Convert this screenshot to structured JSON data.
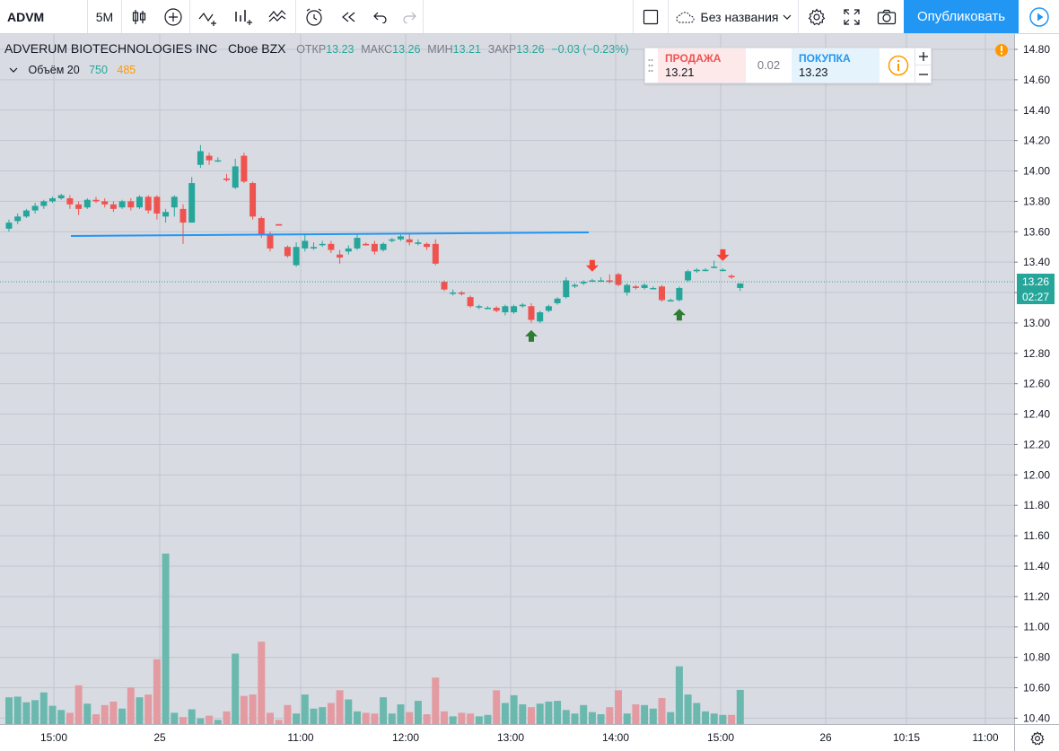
{
  "toolbar": {
    "symbol": "ADVM",
    "interval": "5M",
    "layout_name": "Без названия",
    "publish_label": "Опубликовать"
  },
  "legend": {
    "name": "ADVERUM BIOTECHNOLOGIES INC",
    "exchange": "Cboe BZX",
    "open_label": "ОТКР",
    "open": "13.23",
    "high_label": "МАКС",
    "high": "13.26",
    "low_label": "МИН",
    "low": "13.21",
    "close_label": "ЗАКР",
    "close": "13.26",
    "change": "−0.03 (−0.23%)",
    "volume_label": "Объём 20",
    "volume_ma": "750",
    "volume": "485"
  },
  "trade": {
    "sell_label": "ПРОДАЖА",
    "sell_price": "13.21",
    "spread": "0.02",
    "buy_label": "ПОКУПКА",
    "buy_price": "13.23"
  },
  "price_scale": {
    "labels": [
      "14.80",
      "14.60",
      "14.40",
      "14.20",
      "14.00",
      "13.80",
      "13.60",
      "13.40",
      "13.20",
      "13.00",
      "12.80",
      "12.60",
      "12.40",
      "12.20",
      "12.00",
      "11.80",
      "11.60",
      "11.40",
      "11.20",
      "11.00",
      "10.80",
      "10.60",
      "10.40"
    ],
    "last_price": "13.26",
    "countdown": "02:27"
  },
  "time_scale": {
    "labels": [
      "15:00",
      "25",
      "11:00",
      "12:00",
      "13:00",
      "14:00",
      "15:00",
      "26",
      "10:15",
      "11:00"
    ]
  },
  "colors": {
    "up": "#26a69a",
    "down": "#ef5350",
    "up_volume": "#6bb9ae",
    "down_volume": "#e39ba1",
    "trendline": "#2196f3",
    "accent": "#2196f3"
  },
  "chart_data": {
    "type": "candlestick",
    "symbol": "ADVM",
    "interval": "5M",
    "ylim": [
      10.36,
      14.88
    ],
    "horizontal_line_trendline": 13.58,
    "last_price": 13.26,
    "candles": [
      {
        "o": 13.62,
        "h": 13.68,
        "l": 13.6,
        "c": 13.66,
        "v": 380
      },
      {
        "o": 13.67,
        "h": 13.72,
        "l": 13.65,
        "c": 13.7,
        "v": 390
      },
      {
        "o": 13.7,
        "h": 13.75,
        "l": 13.69,
        "c": 13.74,
        "v": 310
      },
      {
        "o": 13.74,
        "h": 13.79,
        "l": 13.72,
        "c": 13.77,
        "v": 340
      },
      {
        "o": 13.77,
        "h": 13.81,
        "l": 13.75,
        "c": 13.8,
        "v": 450
      },
      {
        "o": 13.8,
        "h": 13.83,
        "l": 13.79,
        "c": 13.82,
        "v": 260
      },
      {
        "o": 13.82,
        "h": 13.85,
        "l": 13.81,
        "c": 13.84,
        "v": 200
      },
      {
        "o": 13.82,
        "h": 13.84,
        "l": 13.75,
        "c": 13.78,
        "v": 160
      },
      {
        "o": 13.78,
        "h": 13.8,
        "l": 13.71,
        "c": 13.75,
        "v": 550
      },
      {
        "o": 13.76,
        "h": 13.82,
        "l": 13.75,
        "c": 13.81,
        "v": 290
      },
      {
        "o": 13.81,
        "h": 13.83,
        "l": 13.79,
        "c": 13.8,
        "v": 140
      },
      {
        "o": 13.8,
        "h": 13.82,
        "l": 13.76,
        "c": 13.78,
        "v": 270
      },
      {
        "o": 13.78,
        "h": 13.8,
        "l": 13.73,
        "c": 13.75,
        "v": 320
      },
      {
        "o": 13.76,
        "h": 13.81,
        "l": 13.75,
        "c": 13.8,
        "v": 220
      },
      {
        "o": 13.8,
        "h": 13.82,
        "l": 13.74,
        "c": 13.76,
        "v": 520
      },
      {
        "o": 13.76,
        "h": 13.84,
        "l": 13.75,
        "c": 13.83,
        "v": 380
      },
      {
        "o": 13.83,
        "h": 13.84,
        "l": 13.72,
        "c": 13.74,
        "v": 420
      },
      {
        "o": 13.83,
        "h": 13.84,
        "l": 13.68,
        "c": 13.72,
        "v": 920
      },
      {
        "o": 13.7,
        "h": 13.75,
        "l": 13.66,
        "c": 13.73,
        "v": 2420
      },
      {
        "o": 13.76,
        "h": 13.84,
        "l": 13.7,
        "c": 13.83,
        "v": 160
      },
      {
        "o": 13.75,
        "h": 13.78,
        "l": 13.52,
        "c": 13.66,
        "v": 100
      },
      {
        "o": 13.66,
        "h": 13.96,
        "l": 13.66,
        "c": 13.92,
        "v": 210
      },
      {
        "o": 14.04,
        "h": 14.17,
        "l": 14.02,
        "c": 14.13,
        "v": 80
      },
      {
        "o": 14.1,
        "h": 14.12,
        "l": 14.04,
        "c": 14.07,
        "v": 120
      },
      {
        "o": 14.07,
        "h": 14.09,
        "l": 14.06,
        "c": 14.07,
        "v": 60
      },
      {
        "o": 13.95,
        "h": 13.98,
        "l": 13.93,
        "c": 13.94,
        "v": 180
      },
      {
        "o": 13.89,
        "h": 14.08,
        "l": 13.88,
        "c": 14.03,
        "v": 1000
      },
      {
        "o": 14.1,
        "h": 14.12,
        "l": 13.92,
        "c": 13.93,
        "v": 400
      },
      {
        "o": 13.92,
        "h": 13.93,
        "l": 13.68,
        "c": 13.7,
        "v": 420
      },
      {
        "o": 13.69,
        "h": 13.7,
        "l": 13.56,
        "c": 13.58,
        "v": 1170
      },
      {
        "o": 13.58,
        "h": 13.6,
        "l": 13.47,
        "c": 13.49,
        "v": 160
      },
      {
        "o": 13.65,
        "h": 13.65,
        "l": 13.64,
        "c": 13.64,
        "v": 60
      },
      {
        "o": 13.5,
        "h": 13.51,
        "l": 13.43,
        "c": 13.44,
        "v": 270
      },
      {
        "o": 13.38,
        "h": 13.53,
        "l": 13.37,
        "c": 13.5,
        "v": 150
      },
      {
        "o": 13.49,
        "h": 13.59,
        "l": 13.47,
        "c": 13.54,
        "v": 420
      },
      {
        "o": 13.49,
        "h": 13.53,
        "l": 13.48,
        "c": 13.5,
        "v": 220
      },
      {
        "o": 13.52,
        "h": 13.54,
        "l": 13.5,
        "c": 13.52,
        "v": 240
      },
      {
        "o": 13.52,
        "h": 13.54,
        "l": 13.46,
        "c": 13.48,
        "v": 300
      },
      {
        "o": 13.45,
        "h": 13.48,
        "l": 13.39,
        "c": 13.43,
        "v": 480
      },
      {
        "o": 13.47,
        "h": 13.51,
        "l": 13.45,
        "c": 13.49,
        "v": 350
      },
      {
        "o": 13.49,
        "h": 13.59,
        "l": 13.48,
        "c": 13.56,
        "v": 180
      },
      {
        "o": 13.52,
        "h": 13.53,
        "l": 13.51,
        "c": 13.51,
        "v": 160
      },
      {
        "o": 13.52,
        "h": 13.54,
        "l": 13.45,
        "c": 13.47,
        "v": 150
      },
      {
        "o": 13.48,
        "h": 13.53,
        "l": 13.47,
        "c": 13.52,
        "v": 380
      },
      {
        "o": 13.54,
        "h": 13.56,
        "l": 13.53,
        "c": 13.55,
        "v": 150
      },
      {
        "o": 13.55,
        "h": 13.58,
        "l": 13.54,
        "c": 13.57,
        "v": 280
      },
      {
        "o": 13.55,
        "h": 13.59,
        "l": 13.51,
        "c": 13.53,
        "v": 170
      },
      {
        "o": 13.52,
        "h": 13.55,
        "l": 13.51,
        "c": 13.53,
        "v": 330
      },
      {
        "o": 13.52,
        "h": 13.53,
        "l": 13.48,
        "c": 13.5,
        "v": 140
      },
      {
        "o": 13.52,
        "h": 13.55,
        "l": 13.38,
        "c": 13.39,
        "v": 660
      },
      {
        "o": 13.27,
        "h": 13.28,
        "l": 13.21,
        "c": 13.22,
        "v": 180
      },
      {
        "o": 13.2,
        "h": 13.22,
        "l": 13.18,
        "c": 13.2,
        "v": 110
      },
      {
        "o": 13.2,
        "h": 13.21,
        "l": 13.18,
        "c": 13.19,
        "v": 160
      },
      {
        "o": 13.17,
        "h": 13.18,
        "l": 13.1,
        "c": 13.11,
        "v": 150
      },
      {
        "o": 13.11,
        "h": 13.12,
        "l": 13.09,
        "c": 13.11,
        "v": 110
      },
      {
        "o": 13.1,
        "h": 13.11,
        "l": 13.09,
        "c": 13.1,
        "v": 130
      },
      {
        "o": 13.1,
        "h": 13.11,
        "l": 13.07,
        "c": 13.08,
        "v": 480
      },
      {
        "o": 13.07,
        "h": 13.12,
        "l": 13.05,
        "c": 13.11,
        "v": 300
      },
      {
        "o": 13.07,
        "h": 13.12,
        "l": 13.06,
        "c": 13.11,
        "v": 410
      },
      {
        "o": 13.11,
        "h": 13.13,
        "l": 13.1,
        "c": 13.12,
        "v": 280
      },
      {
        "o": 13.11,
        "h": 13.13,
        "l": 13.0,
        "c": 13.02,
        "v": 240
      },
      {
        "o": 13.01,
        "h": 13.08,
        "l": 13.0,
        "c": 13.07,
        "v": 290
      },
      {
        "o": 13.08,
        "h": 13.12,
        "l": 13.07,
        "c": 13.11,
        "v": 320
      },
      {
        "o": 13.13,
        "h": 13.17,
        "l": 13.12,
        "c": 13.16,
        "v": 330
      },
      {
        "o": 13.17,
        "h": 13.3,
        "l": 13.16,
        "c": 13.28,
        "v": 200
      },
      {
        "o": 13.24,
        "h": 13.26,
        "l": 13.23,
        "c": 13.25,
        "v": 150
      },
      {
        "o": 13.26,
        "h": 13.28,
        "l": 13.25,
        "c": 13.27,
        "v": 270
      },
      {
        "o": 13.28,
        "h": 13.29,
        "l": 13.27,
        "c": 13.28,
        "v": 170
      },
      {
        "o": 13.28,
        "h": 13.3,
        "l": 13.27,
        "c": 13.28,
        "v": 140
      },
      {
        "o": 13.28,
        "h": 13.32,
        "l": 13.26,
        "c": 13.27,
        "v": 240
      },
      {
        "o": 13.32,
        "h": 13.33,
        "l": 13.24,
        "c": 13.25,
        "v": 480
      },
      {
        "o": 13.2,
        "h": 13.26,
        "l": 13.18,
        "c": 13.25,
        "v": 150
      },
      {
        "o": 13.24,
        "h": 13.25,
        "l": 13.22,
        "c": 13.23,
        "v": 280
      },
      {
        "o": 13.23,
        "h": 13.26,
        "l": 13.22,
        "c": 13.25,
        "v": 270
      },
      {
        "o": 13.23,
        "h": 13.24,
        "l": 13.22,
        "c": 13.23,
        "v": 220
      },
      {
        "o": 13.24,
        "h": 13.25,
        "l": 13.14,
        "c": 13.15,
        "v": 370
      },
      {
        "o": 13.15,
        "h": 13.16,
        "l": 13.14,
        "c": 13.15,
        "v": 170
      },
      {
        "o": 13.15,
        "h": 13.24,
        "l": 13.14,
        "c": 13.23,
        "v": 820
      },
      {
        "o": 13.28,
        "h": 13.35,
        "l": 13.27,
        "c": 13.34,
        "v": 420
      },
      {
        "o": 13.34,
        "h": 13.36,
        "l": 13.33,
        "c": 13.35,
        "v": 300
      },
      {
        "o": 13.35,
        "h": 13.36,
        "l": 13.34,
        "c": 13.35,
        "v": 180
      },
      {
        "o": 13.37,
        "h": 13.41,
        "l": 13.36,
        "c": 13.37,
        "v": 150
      },
      {
        "o": 13.35,
        "h": 13.36,
        "l": 13.34,
        "c": 13.35,
        "v": 130
      },
      {
        "o": 13.31,
        "h": 13.32,
        "l": 13.29,
        "c": 13.3,
        "v": 130
      },
      {
        "o": 13.23,
        "h": 13.26,
        "l": 13.21,
        "c": 13.26,
        "v": 485
      }
    ],
    "signals": [
      {
        "type": "buy",
        "index": 60
      },
      {
        "type": "sell",
        "index": 67
      },
      {
        "type": "buy",
        "index": 77
      },
      {
        "type": "sell",
        "index": 82
      }
    ]
  }
}
